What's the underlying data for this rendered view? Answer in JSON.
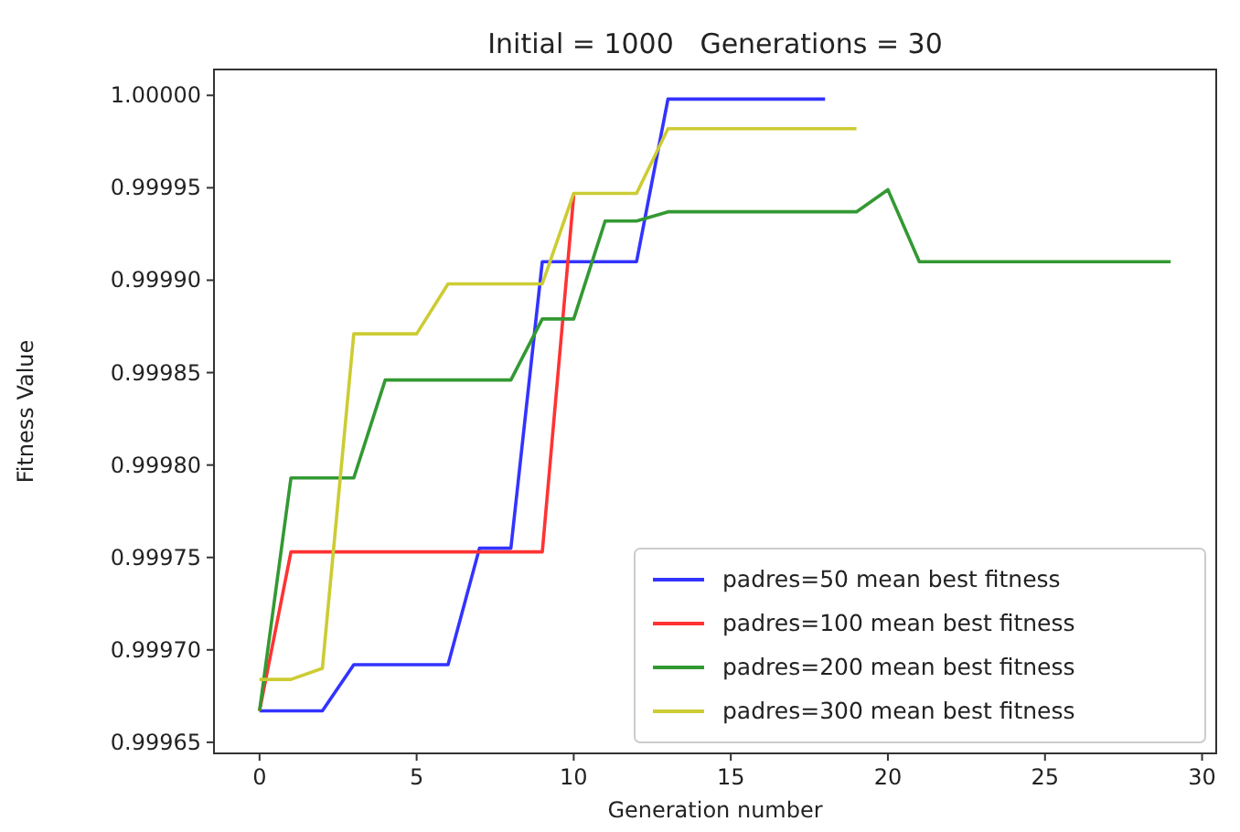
{
  "chart_data": {
    "type": "line",
    "title": "Initial = 1000   Generations = 30",
    "xlabel": "Generation number",
    "ylabel": "Fitness Value",
    "xlim": [
      -1.45,
      30.45
    ],
    "xticks": [
      0,
      5,
      10,
      15,
      20,
      25,
      30
    ],
    "ylim": [
      0.999644,
      1.000014
    ],
    "yticks": [
      {
        "value": 0.99965,
        "label": "0.99965"
      },
      {
        "value": 0.9997,
        "label": "0.99970"
      },
      {
        "value": 0.99975,
        "label": "0.99975"
      },
      {
        "value": 0.9998,
        "label": "0.99980"
      },
      {
        "value": 0.99985,
        "label": "0.99985"
      },
      {
        "value": 0.9999,
        "label": "0.99990"
      },
      {
        "value": 0.99995,
        "label": "0.99995"
      },
      {
        "value": 1.0,
        "label": "1.00000"
      }
    ],
    "grid": false,
    "legend": "bottom right",
    "marker": "none",
    "line_style": "solid",
    "series": [
      {
        "name": "padres=50 mean best fitness",
        "color": "#3333ff",
        "x": [
          0,
          1,
          2,
          3,
          4,
          5,
          6,
          7,
          8,
          9,
          10,
          11,
          12,
          13,
          14,
          15,
          16,
          17,
          18
        ],
        "values": [
          0.999667,
          0.999667,
          0.999667,
          0.999692,
          0.999692,
          0.999692,
          0.999692,
          0.999755,
          0.999755,
          0.99991,
          0.99991,
          0.99991,
          0.99991,
          0.999998,
          0.999998,
          0.999998,
          0.999998,
          0.999998,
          0.999998
        ]
      },
      {
        "name": "padres=100 mean best fitness",
        "color": "#ff3333",
        "x": [
          0,
          1,
          2,
          3,
          4,
          5,
          6,
          7,
          8,
          9,
          10
        ],
        "values": [
          0.999667,
          0.999753,
          0.999753,
          0.999753,
          0.999753,
          0.999753,
          0.999753,
          0.999753,
          0.999753,
          0.999753,
          0.999946
        ]
      },
      {
        "name": "padres=200 mean best fitness",
        "color": "#339933",
        "x": [
          0,
          1,
          2,
          3,
          4,
          5,
          6,
          7,
          8,
          9,
          10,
          11,
          12,
          13,
          14,
          15,
          16,
          17,
          18,
          19,
          20,
          21,
          22,
          23,
          24,
          25,
          26,
          27,
          28,
          29
        ],
        "values": [
          0.999667,
          0.999793,
          0.999793,
          0.999793,
          0.999846,
          0.999846,
          0.999846,
          0.999846,
          0.999846,
          0.999879,
          0.999879,
          0.999932,
          0.999932,
          0.999937,
          0.999937,
          0.999937,
          0.999937,
          0.999937,
          0.999937,
          0.999937,
          0.999949,
          0.99991,
          0.99991,
          0.99991,
          0.99991,
          0.99991,
          0.99991,
          0.99991,
          0.99991,
          0.99991
        ]
      },
      {
        "name": "padres=300 mean best fitness",
        "color": "#cccc33",
        "x": [
          0,
          1,
          2,
          3,
          4,
          5,
          6,
          7,
          8,
          9,
          10,
          11,
          12,
          13,
          14,
          15,
          16,
          17,
          18,
          19
        ],
        "values": [
          0.999684,
          0.999684,
          0.99969,
          0.999871,
          0.999871,
          0.999871,
          0.999898,
          0.999898,
          0.999898,
          0.999898,
          0.999947,
          0.999947,
          0.999947,
          0.999982,
          0.999982,
          0.999982,
          0.999982,
          0.999982,
          0.999982,
          0.999982
        ]
      }
    ]
  }
}
